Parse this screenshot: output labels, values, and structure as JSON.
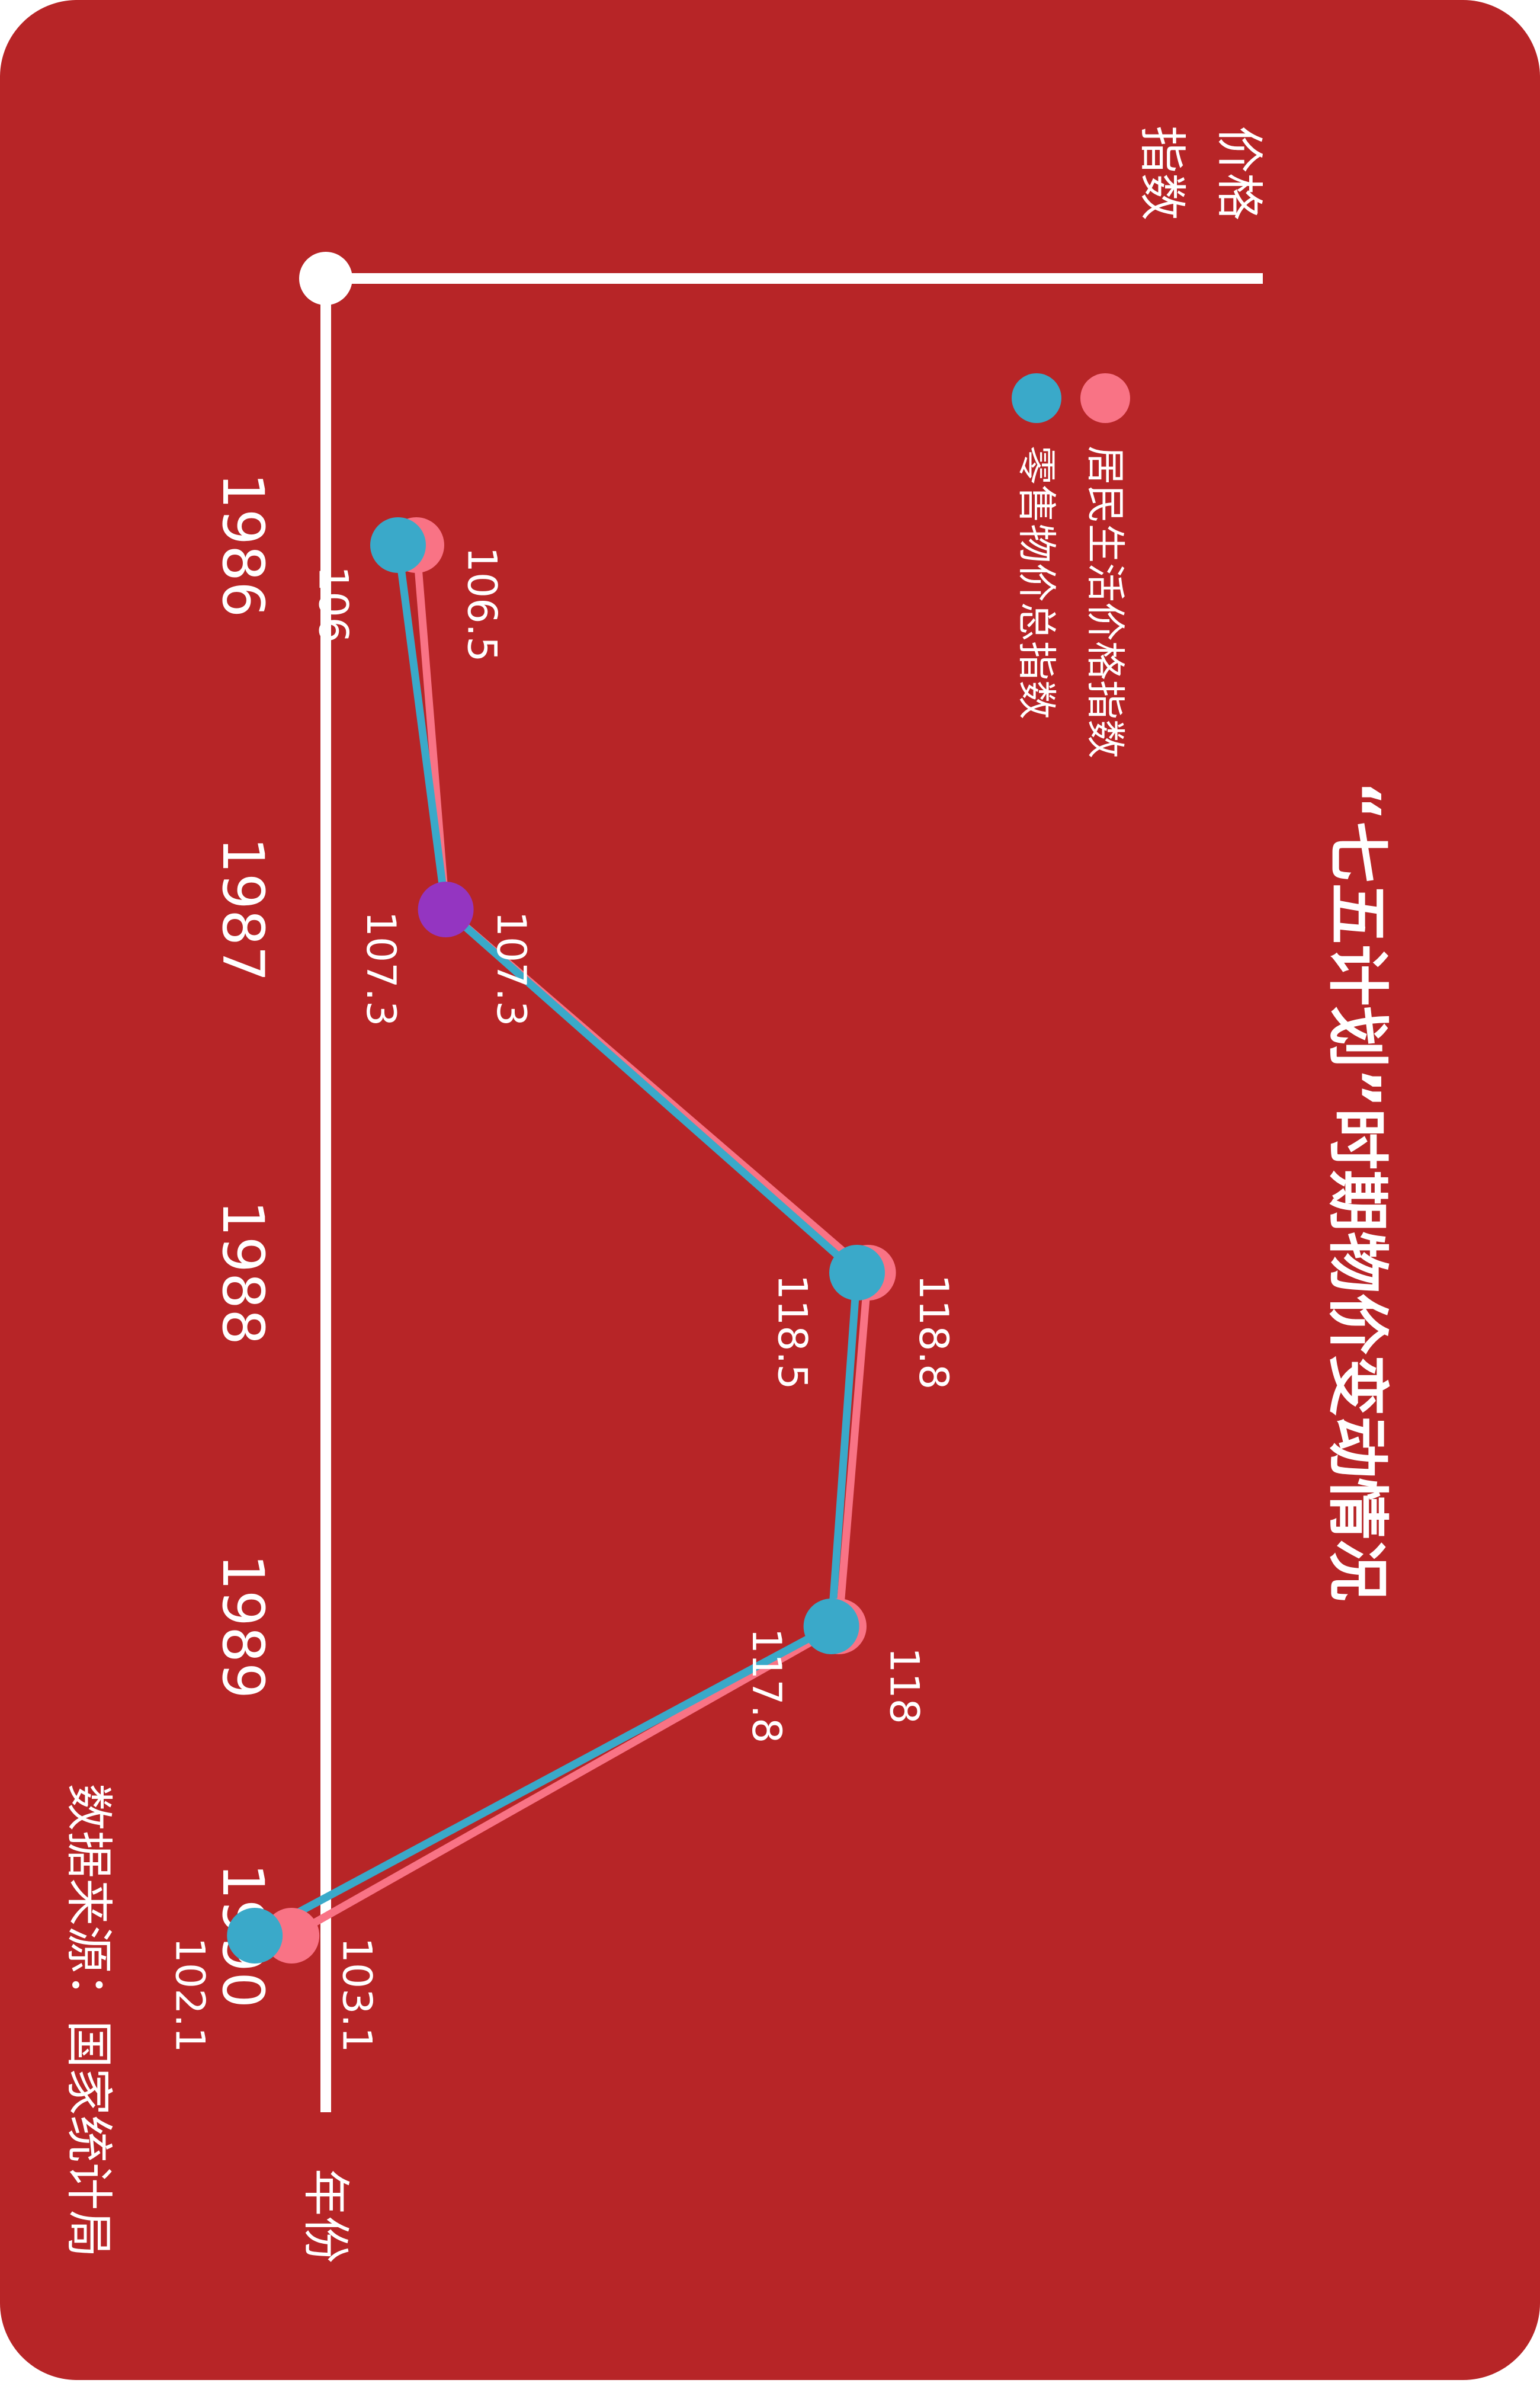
{
  "chart_data": {
    "type": "line",
    "title": "“七五计划”时期物价变动情况",
    "xlabel": "年份",
    "ylabel": "价格指数",
    "categories": [
      "1986",
      "1987",
      "1988",
      "1989",
      "1990"
    ],
    "ylim": [
      100,
      120
    ],
    "grid": false,
    "legend_position": "top",
    "series": [
      {
        "name": "居民生活价格指数",
        "values": [
          106.5,
          107.3,
          118.8,
          118,
          103.1
        ],
        "labels": [
          "106.5",
          "107.3",
          "118.8",
          "118",
          "103.1"
        ],
        "color": "#f97385"
      },
      {
        "name": "零售物价总指数",
        "values": [
          106,
          107.3,
          118.5,
          117.8,
          102.1
        ],
        "labels": [
          "106",
          "107.3",
          "118.5",
          "117.8",
          "102.1"
        ],
        "color": "#3aa9c9"
      }
    ],
    "source": "数据来源：国家统计局",
    "colors": {
      "background": "#b72527",
      "axis": "#ffffff",
      "overlap_marker": "#9435c1"
    }
  }
}
